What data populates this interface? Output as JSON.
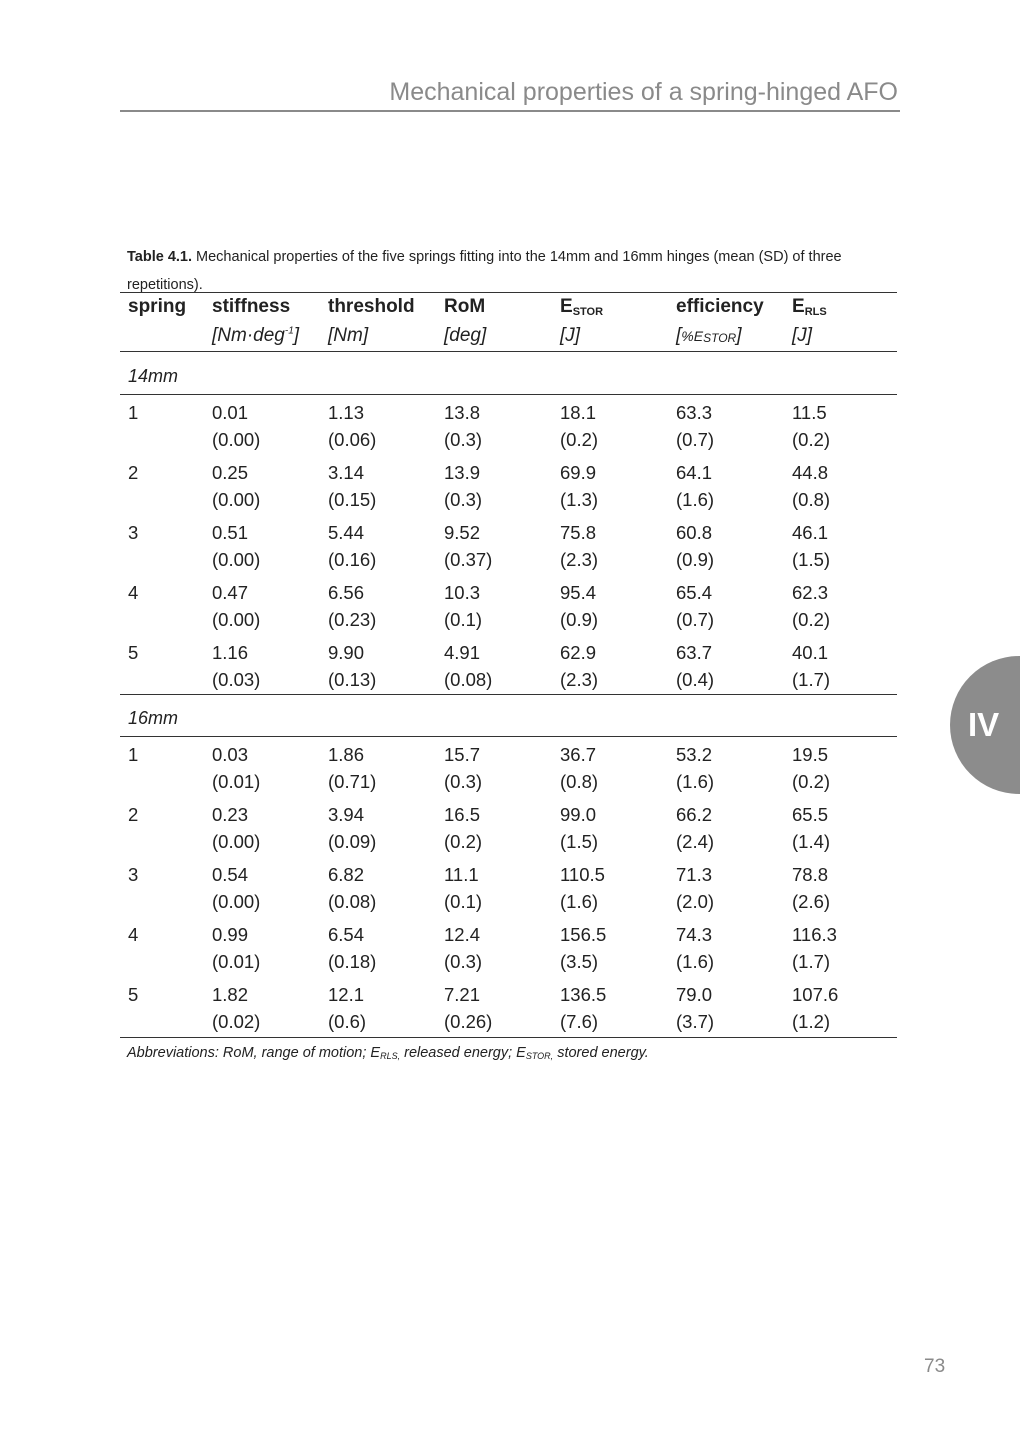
{
  "running_header": "Mechanical properties of a spring-hinged AFO",
  "caption": {
    "label": "Table 4.1.",
    "text": " Mechanical properties of the five springs fitting into the 14mm and 16mm hinges (mean (SD) of three repetitions)."
  },
  "table": {
    "headers": [
      {
        "name": "spring",
        "sub": "",
        "unit": ""
      },
      {
        "name": "stiffness",
        "sub": "",
        "unit": "[Nm·deg-1]"
      },
      {
        "name": "threshold",
        "sub": "",
        "unit": "[Nm]"
      },
      {
        "name": "RoM",
        "sub": "",
        "unit": "[deg]"
      },
      {
        "name": "E",
        "sub": "STOR",
        "unit": "[J]"
      },
      {
        "name": "efficiency",
        "sub": "",
        "unit": "[%ESTOR]"
      },
      {
        "name": "E",
        "sub": "RLS",
        "unit": "[J]"
      }
    ],
    "sections": [
      {
        "label": "14mm",
        "rows": [
          {
            "spring": "1",
            "mean": [
              "0.01",
              "1.13",
              "13.8",
              "18.1",
              "63.3",
              "11.5"
            ],
            "sd": [
              "(0.00)",
              "(0.06)",
              "(0.3)",
              "(0.2)",
              "(0.7)",
              "(0.2)"
            ]
          },
          {
            "spring": "2",
            "mean": [
              "0.25",
              "3.14",
              "13.9",
              "69.9",
              "64.1",
              "44.8"
            ],
            "sd": [
              "(0.00)",
              "(0.15)",
              "(0.3)",
              "(1.3)",
              "(1.6)",
              "(0.8)"
            ]
          },
          {
            "spring": "3",
            "mean": [
              "0.51",
              "5.44",
              "9.52",
              "75.8",
              "60.8",
              "46.1"
            ],
            "sd": [
              "(0.00)",
              "(0.16)",
              "(0.37)",
              "(2.3)",
              "(0.9)",
              "(1.5)"
            ]
          },
          {
            "spring": "4",
            "mean": [
              "0.47",
              "6.56",
              "10.3",
              "95.4",
              "65.4",
              "62.3"
            ],
            "sd": [
              "(0.00)",
              "(0.23)",
              "(0.1)",
              "(0.9)",
              "(0.7)",
              "(0.2)"
            ]
          },
          {
            "spring": "5",
            "mean": [
              "1.16",
              "9.90",
              "4.91",
              "62.9",
              "63.7",
              "40.1"
            ],
            "sd": [
              "(0.03)",
              "(0.13)",
              "(0.08)",
              "(2.3)",
              "(0.4)",
              "(1.7)"
            ]
          }
        ]
      },
      {
        "label": "16mm",
        "rows": [
          {
            "spring": "1",
            "mean": [
              "0.03",
              "1.86",
              "15.7",
              "36.7",
              "53.2",
              "19.5"
            ],
            "sd": [
              "(0.01)",
              "(0.71)",
              "(0.3)",
              "(0.8)",
              "(1.6)",
              "(0.2)"
            ]
          },
          {
            "spring": "2",
            "mean": [
              "0.23",
              "3.94",
              "16.5",
              "99.0",
              "66.2",
              "65.5"
            ],
            "sd": [
              "(0.00)",
              "(0.09)",
              "(0.2)",
              "(1.5)",
              "(2.4)",
              "(1.4)"
            ]
          },
          {
            "spring": "3",
            "mean": [
              "0.54",
              "6.82",
              "11.1",
              "110.5",
              "71.3",
              "78.8"
            ],
            "sd": [
              "(0.00)",
              "(0.08)",
              "(0.1)",
              "(1.6)",
              "(2.0)",
              "(2.6)"
            ]
          },
          {
            "spring": "4",
            "mean": [
              "0.99",
              "6.54",
              "12.4",
              "156.5",
              "74.3",
              "116.3"
            ],
            "sd": [
              "(0.01)",
              "(0.18)",
              "(0.3)",
              "(3.5)",
              "(1.6)",
              "(1.7)"
            ]
          },
          {
            "spring": "5",
            "mean": [
              "1.82",
              "12.1",
              "7.21",
              "136.5",
              "79.0",
              "107.6"
            ],
            "sd": [
              "(0.02)",
              "(0.6)",
              "(0.26)",
              "(7.6)",
              "(3.7)",
              "(1.2)"
            ]
          }
        ]
      }
    ]
  },
  "abbreviations": {
    "prefix": "Abbreviations: RoM, range of motion; ",
    "e1": "E",
    "e1_sub": "RLS,",
    "e1_text": " released energy; ",
    "e2": "E",
    "e2_sub": "STOR,",
    "e2_text": " stored energy."
  },
  "chapter_tab": "IV",
  "page_number": "73"
}
